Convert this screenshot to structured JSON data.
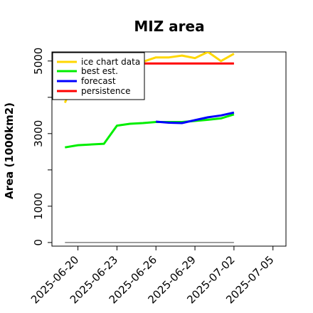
{
  "chart_data": {
    "type": "line",
    "title": "MIZ area",
    "xlabel": "",
    "ylabel": "Area (1000km2)",
    "x_ticks": [
      "2025-06-20",
      "2025-06-23",
      "2025-06-26",
      "2025-06-29",
      "2025-07-02",
      "2025-07-05"
    ],
    "highlighted_tick": "2025-06-26",
    "highlight_color": "#228b22",
    "y_ticks": [
      0,
      1000,
      2000,
      3000,
      4000,
      5000
    ],
    "y_tick_labels": [
      "0",
      "1000",
      "",
      "3000",
      "",
      "5000"
    ],
    "ylim": [
      -100,
      5250
    ],
    "xlim": [
      "2025-06-18",
      "2025-07-06"
    ],
    "grid": false,
    "legend_position": "top-left",
    "series": [
      {
        "name": "ice chart data",
        "color": "#ffd700",
        "points": [
          [
            "2025-06-19",
            3850
          ],
          [
            "2025-06-20",
            4700
          ],
          [
            "2025-06-23",
            4820
          ],
          [
            "2025-06-24",
            4900
          ],
          [
            "2025-06-25",
            4980
          ],
          [
            "2025-06-26",
            5100
          ],
          [
            "2025-06-27",
            5100
          ],
          [
            "2025-06-28",
            5150
          ],
          [
            "2025-06-29",
            5080
          ],
          [
            "2025-06-30",
            5250
          ],
          [
            "2025-07-01",
            5000
          ],
          [
            "2025-07-02",
            5200
          ]
        ]
      },
      {
        "name": "best est.",
        "color": "#00ee00",
        "points": [
          [
            "2025-06-19",
            2620
          ],
          [
            "2025-06-20",
            2680
          ],
          [
            "2025-06-22",
            2720
          ],
          [
            "2025-06-23",
            3220
          ],
          [
            "2025-06-24",
            3270
          ],
          [
            "2025-06-25",
            3290
          ],
          [
            "2025-06-26",
            3320
          ],
          [
            "2025-06-27",
            3320
          ],
          [
            "2025-06-28",
            3320
          ],
          [
            "2025-06-29",
            3350
          ],
          [
            "2025-06-30",
            3380
          ],
          [
            "2025-07-01",
            3420
          ],
          [
            "2025-07-02",
            3530
          ]
        ]
      },
      {
        "name": "forecast",
        "color": "#0000ff",
        "points": [
          [
            "2025-06-26",
            3330
          ],
          [
            "2025-06-27",
            3300
          ],
          [
            "2025-06-28",
            3290
          ],
          [
            "2025-06-29",
            3370
          ],
          [
            "2025-06-30",
            3450
          ],
          [
            "2025-07-01",
            3500
          ],
          [
            "2025-07-02",
            3580
          ]
        ]
      },
      {
        "name": "persistence",
        "color": "#ff0000",
        "points": [
          [
            "2025-06-23",
            4930
          ],
          [
            "2025-07-02",
            4930
          ]
        ]
      },
      {
        "name": "",
        "color": "#808080",
        "points": [
          [
            "2025-06-19",
            0
          ],
          [
            "2025-07-02",
            0
          ]
        ]
      }
    ]
  }
}
